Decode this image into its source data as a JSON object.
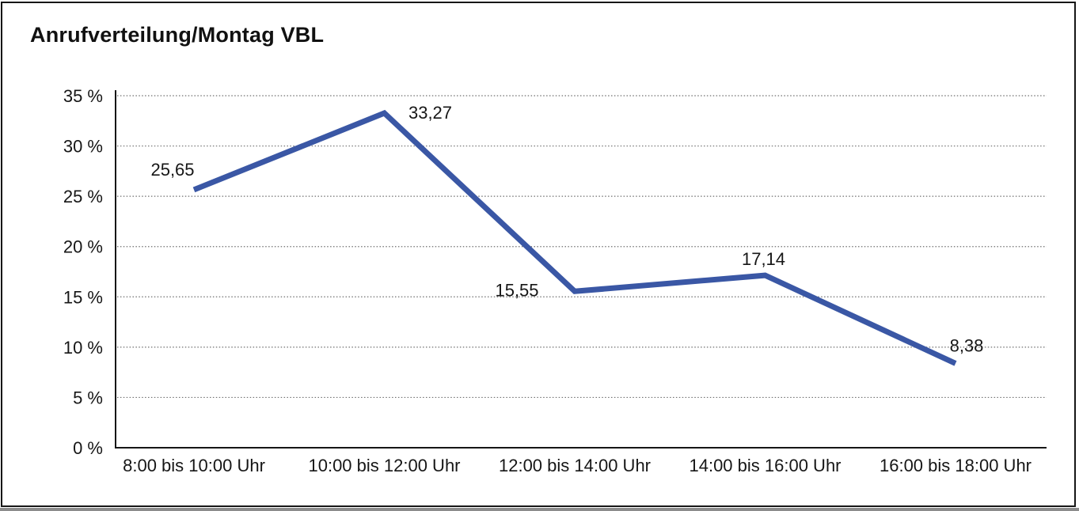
{
  "chart_data": {
    "type": "line",
    "title": "Anrufverteilung/Montag VBL",
    "categories": [
      "8:00 bis 10:00 Uhr",
      "10:00 bis 12:00 Uhr",
      "12:00 bis 14:00 Uhr",
      "14:00 bis 16:00 Uhr",
      "16:00 bis 18:00 Uhr"
    ],
    "values": [
      25.65,
      33.27,
      15.55,
      17.14,
      8.38
    ],
    "value_labels": [
      "25,65",
      "33,27",
      "15,55",
      "17,14",
      "8,38"
    ],
    "y_ticks": [
      {
        "value": 0,
        "label": "0 %"
      },
      {
        "value": 5,
        "label": "5 %"
      },
      {
        "value": 10,
        "label": "10 %"
      },
      {
        "value": 15,
        "label": "15 %"
      },
      {
        "value": 20,
        "label": "20 %"
      },
      {
        "value": 25,
        "label": "25 %"
      },
      {
        "value": 30,
        "label": "30 %"
      },
      {
        "value": 35,
        "label": "35 %"
      }
    ],
    "ylim": [
      0,
      35
    ],
    "xlabel": "",
    "ylabel": "",
    "grid": "horizontal-dotted",
    "legend": "none",
    "colors": {
      "line": "#3a57a5",
      "axis": "#161616",
      "text": "#161616",
      "grid": "#6f6f6f",
      "background": "#ffffff",
      "border": "#161616"
    }
  }
}
